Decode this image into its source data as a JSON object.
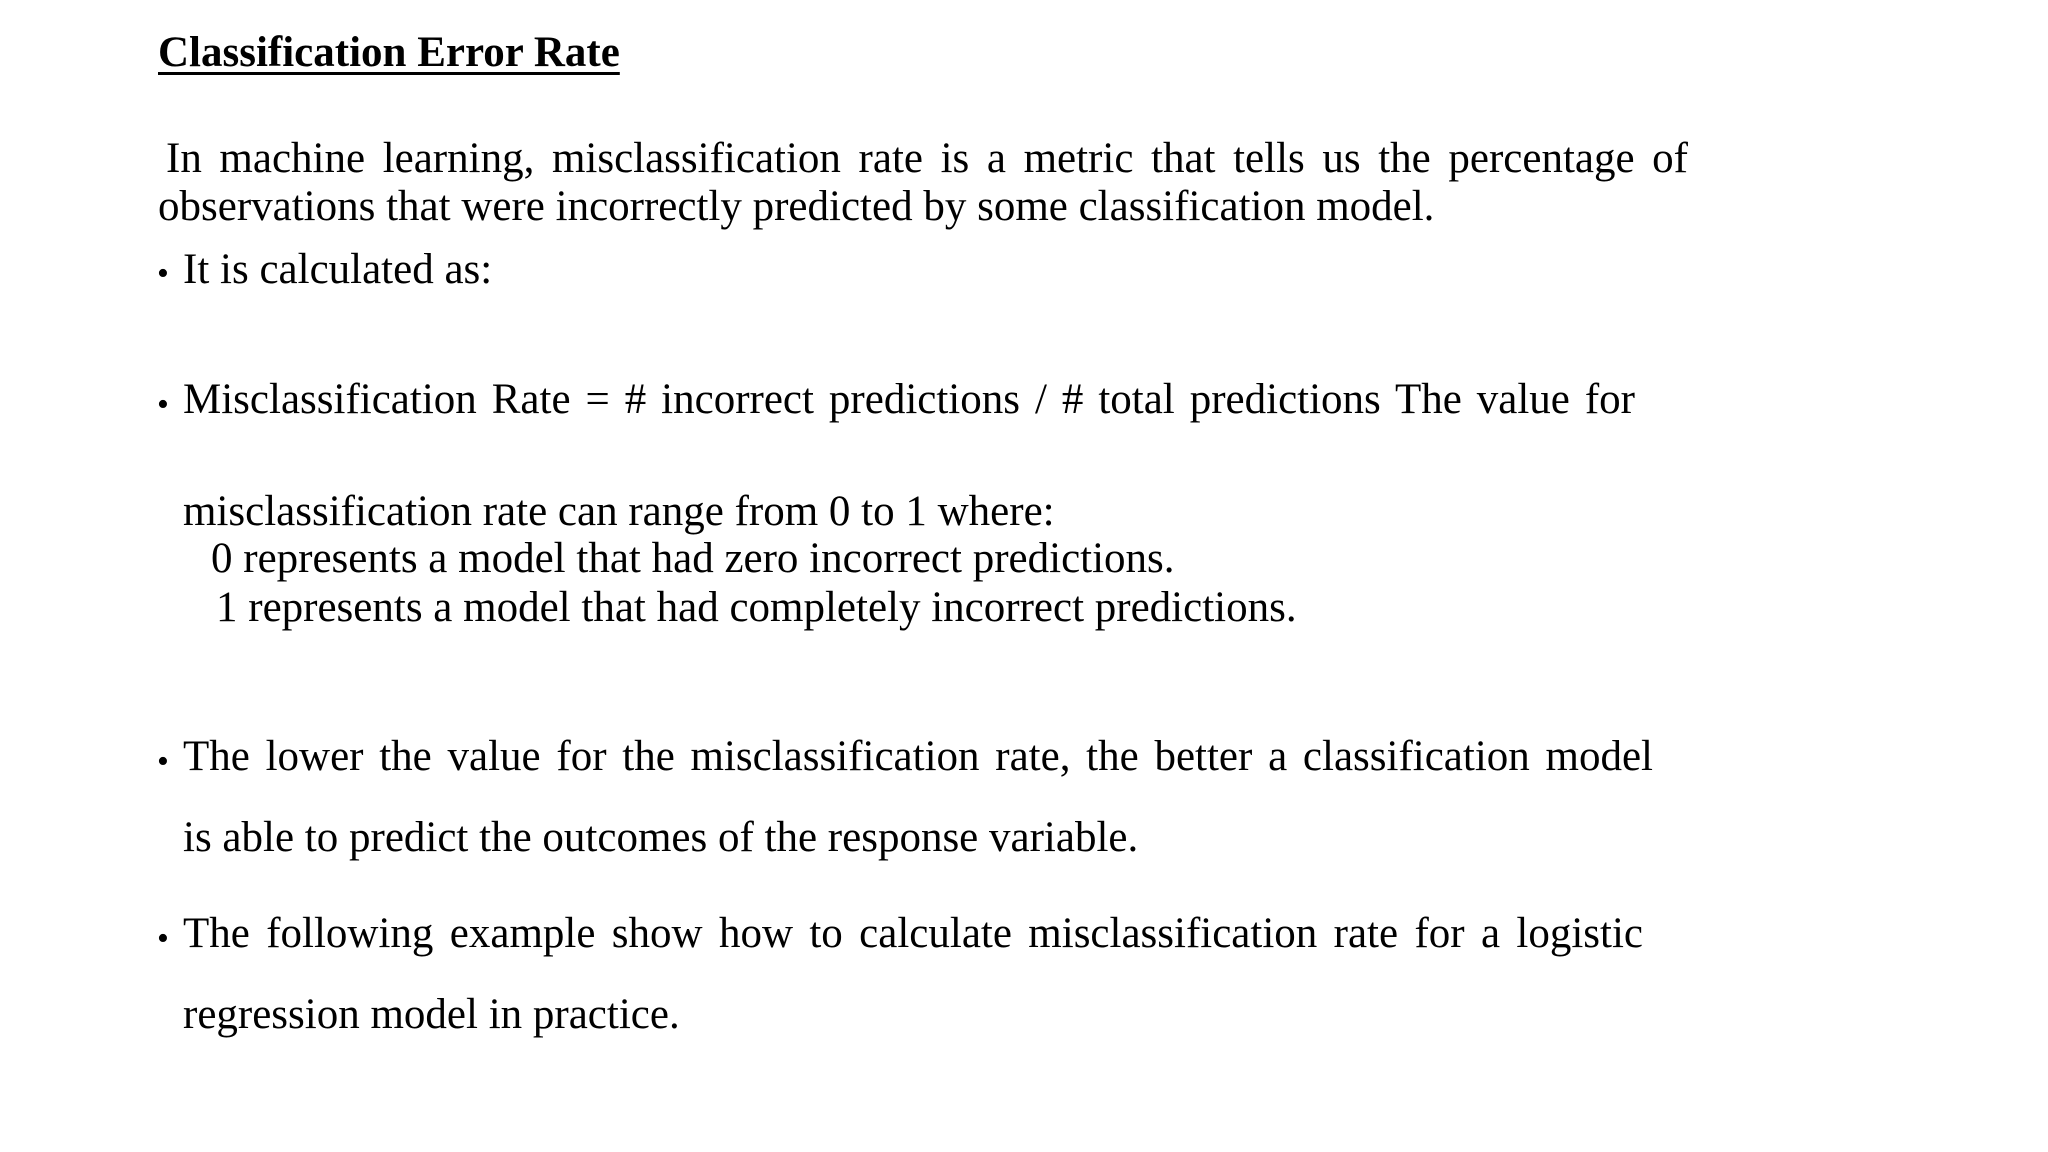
{
  "title": "Classification Error Rate",
  "intro": {
    "line1": "In machine learning, misclassification rate is a metric that tells us the percentage of",
    "line2": "observations that were incorrectly predicted by some classification model."
  },
  "bullet_symbol": "•",
  "bullets": [
    {
      "lines": [
        "It is calculated as:"
      ]
    },
    {
      "lines": [
        "Misclassification Rate = # incorrect predictions / # total predictions The value for",
        "misclassification rate can range from 0 to 1 where:",
        "0 represents a model that had zero incorrect predictions.",
        "1 represents a model that had completely incorrect predictions."
      ]
    },
    {
      "lines": [
        "The lower the value for the misclassification rate, the better a classification model",
        "is able to predict the outcomes of the response variable."
      ]
    },
    {
      "lines": [
        "The following example show how to calculate misclassification rate for a logistic",
        "regression model in practice."
      ]
    }
  ]
}
